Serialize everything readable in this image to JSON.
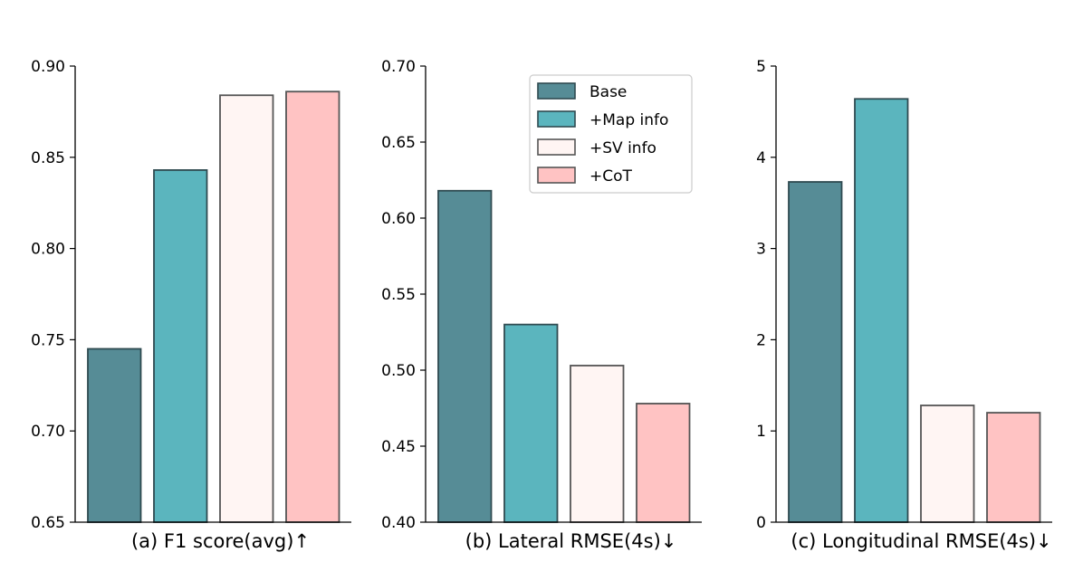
{
  "legend": {
    "placement": "upper-right of panel (b)",
    "entries": [
      {
        "label": "Base",
        "color": "#568c96"
      },
      {
        "label": "+Map info",
        "color": "#5bb5be"
      },
      {
        "label": "+SV info",
        "color": "#fff5f3"
      },
      {
        "label": "+CoT",
        "color": "#ffc3c3"
      }
    ]
  },
  "chart_data": [
    {
      "type": "bar",
      "title": "(a) F1 score(avg)↑",
      "categories": [
        "Base",
        "+Map info",
        "+SV info",
        "+CoT"
      ],
      "values": [
        0.745,
        0.843,
        0.884,
        0.886
      ],
      "ylim": [
        0.65,
        0.9
      ],
      "yticks": [
        "0.65",
        "0.70",
        "0.75",
        "0.80",
        "0.85",
        "0.90"
      ],
      "ytick_values": [
        0.65,
        0.7,
        0.75,
        0.8,
        0.85,
        0.9
      ],
      "grid": false
    },
    {
      "type": "bar",
      "title": "(b) Lateral RMSE(4s)↓",
      "categories": [
        "Base",
        "+Map info",
        "+SV info",
        "+CoT"
      ],
      "values": [
        0.618,
        0.53,
        0.503,
        0.478
      ],
      "ylim": [
        0.4,
        0.7
      ],
      "yticks": [
        "0.40",
        "0.45",
        "0.50",
        "0.55",
        "0.60",
        "0.65",
        "0.70"
      ],
      "ytick_values": [
        0.4,
        0.45,
        0.5,
        0.55,
        0.6,
        0.65,
        0.7
      ],
      "grid": false
    },
    {
      "type": "bar",
      "title": "(c) Longitudinal RMSE(4s)↓",
      "categories": [
        "Base",
        "+Map info",
        "+SV info",
        "+CoT"
      ],
      "values": [
        3.73,
        4.64,
        1.28,
        1.2
      ],
      "ylim": [
        0,
        5
      ],
      "yticks": [
        "0",
        "1",
        "2",
        "3",
        "4",
        "5"
      ],
      "ytick_values": [
        0,
        1,
        2,
        3,
        4,
        5
      ],
      "grid": false
    }
  ]
}
